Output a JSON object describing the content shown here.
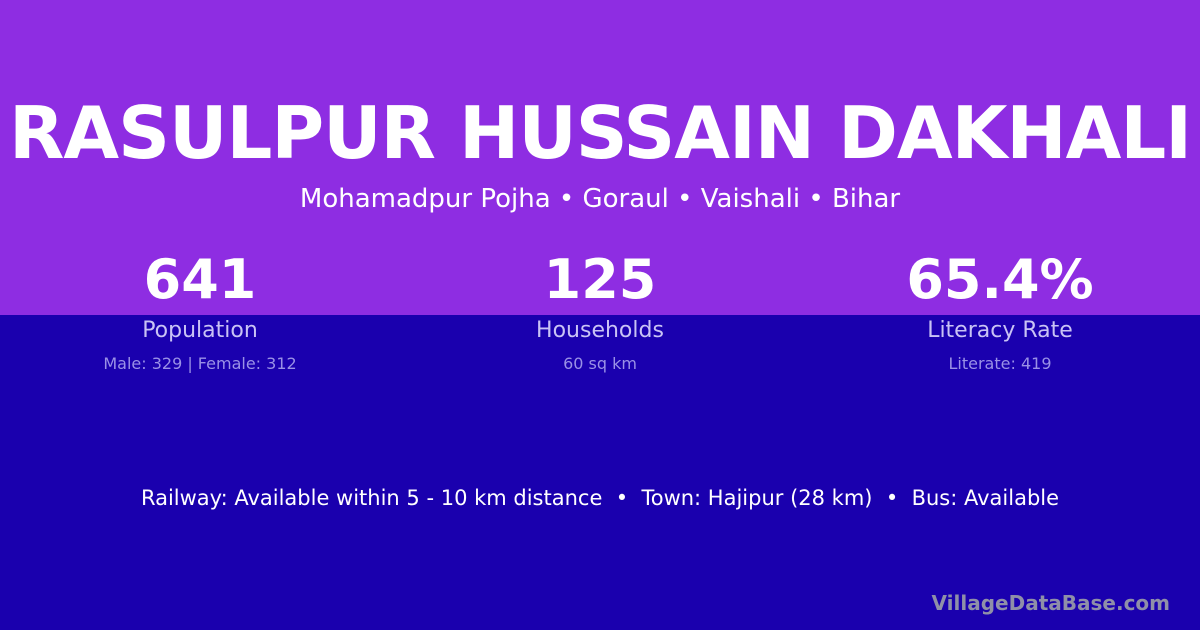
{
  "village": {
    "name": "RASULPUR HUSSAIN DAKHALI",
    "location": "Mohamadpur Pojha • Goraul • Vaishali • Bihar"
  },
  "stats": [
    {
      "value": "641",
      "label": "Population",
      "detail": "Male: 329 | Female: 312"
    },
    {
      "value": "125",
      "label": "Households",
      "detail": "60 sq km"
    },
    {
      "value": "65.4%",
      "label": "Literacy Rate",
      "detail": "Literate: 419"
    }
  ],
  "access": "Railway: Available within 5 - 10 km distance  •  Town: Hajipur (28 km)  •  Bus: Available",
  "watermark": "VillageDataBase.com",
  "colors": {
    "top": "#8e2de2",
    "bottom": "#1a00ae"
  }
}
